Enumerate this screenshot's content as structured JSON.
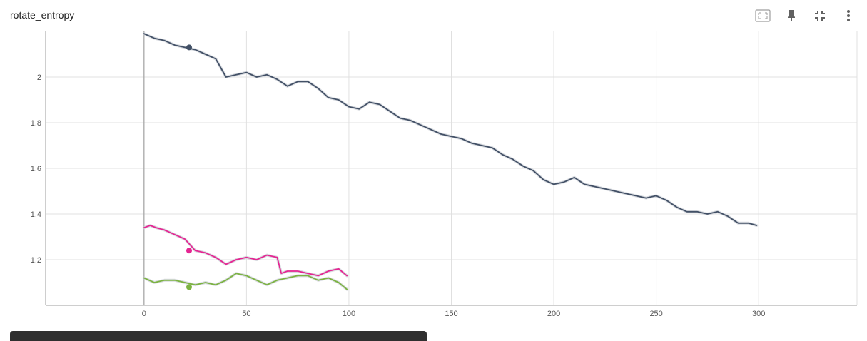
{
  "card": {
    "title": "rotate_entropy"
  },
  "toolbar": {
    "buttons": [
      {
        "name": "fit-domain-button",
        "icon": "fit-to-data-icon"
      },
      {
        "name": "pin-button",
        "icon": "pin-icon"
      },
      {
        "name": "collapse-button",
        "icon": "collapse-icon"
      },
      {
        "name": "more-options-button",
        "icon": "more-vert-icon"
      }
    ]
  },
  "chart_data": {
    "type": "line",
    "title": "rotate_entropy",
    "xlabel": "",
    "ylabel": "",
    "xlim": [
      -48,
      348
    ],
    "ylim": [
      1.0,
      2.2
    ],
    "xticks": [
      0,
      50,
      100,
      150,
      200,
      250,
      300
    ],
    "yticks": [
      1.2,
      1.4,
      1.6,
      1.8,
      2
    ],
    "grid": true,
    "series": [
      {
        "color": "#425066",
        "x": [
          0,
          5,
          10,
          15,
          20,
          25,
          30,
          35,
          40,
          45,
          50,
          55,
          60,
          65,
          70,
          75,
          80,
          85,
          90,
          95,
          100,
          105,
          110,
          115,
          120,
          125,
          130,
          135,
          140,
          145,
          150,
          155,
          160,
          165,
          170,
          175,
          180,
          185,
          190,
          195,
          200,
          205,
          210,
          215,
          220,
          225,
          230,
          235,
          240,
          245,
          250,
          255,
          260,
          265,
          270,
          275,
          280,
          285,
          290,
          295,
          299
        ],
        "y": [
          2.19,
          2.17,
          2.16,
          2.14,
          2.13,
          2.12,
          2.1,
          2.08,
          2.0,
          2.01,
          2.02,
          2.0,
          2.01,
          1.99,
          1.96,
          1.98,
          1.98,
          1.95,
          1.91,
          1.9,
          1.87,
          1.86,
          1.89,
          1.88,
          1.85,
          1.82,
          1.81,
          1.79,
          1.77,
          1.75,
          1.74,
          1.73,
          1.71,
          1.7,
          1.69,
          1.66,
          1.64,
          1.61,
          1.59,
          1.55,
          1.53,
          1.54,
          1.56,
          1.53,
          1.52,
          1.51,
          1.5,
          1.49,
          1.48,
          1.47,
          1.48,
          1.46,
          1.43,
          1.41,
          1.41,
          1.4,
          1.41,
          1.39,
          1.36,
          1.36,
          1.35
        ],
        "marker_x": 22,
        "marker_y": 2.13
      },
      {
        "color": "#e52592",
        "x": [
          0,
          3,
          6,
          10,
          15,
          20,
          25,
          30,
          35,
          40,
          45,
          50,
          55,
          60,
          65,
          67,
          70,
          75,
          80,
          85,
          90,
          95,
          99
        ],
        "y": [
          1.34,
          1.35,
          1.34,
          1.33,
          1.31,
          1.29,
          1.24,
          1.23,
          1.21,
          1.18,
          1.2,
          1.21,
          1.2,
          1.22,
          1.21,
          1.14,
          1.15,
          1.15,
          1.14,
          1.13,
          1.15,
          1.16,
          1.13
        ],
        "marker_x": 22,
        "marker_y": 1.24
      },
      {
        "color": "#7cb342",
        "x": [
          0,
          5,
          10,
          15,
          20,
          25,
          30,
          35,
          40,
          45,
          50,
          55,
          60,
          65,
          70,
          75,
          80,
          85,
          90,
          95,
          99
        ],
        "y": [
          1.12,
          1.1,
          1.11,
          1.11,
          1.1,
          1.09,
          1.1,
          1.09,
          1.11,
          1.14,
          1.13,
          1.11,
          1.09,
          1.11,
          1.12,
          1.13,
          1.13,
          1.11,
          1.12,
          1.1,
          1.07
        ],
        "marker_x": 22,
        "marker_y": 1.08
      }
    ]
  }
}
